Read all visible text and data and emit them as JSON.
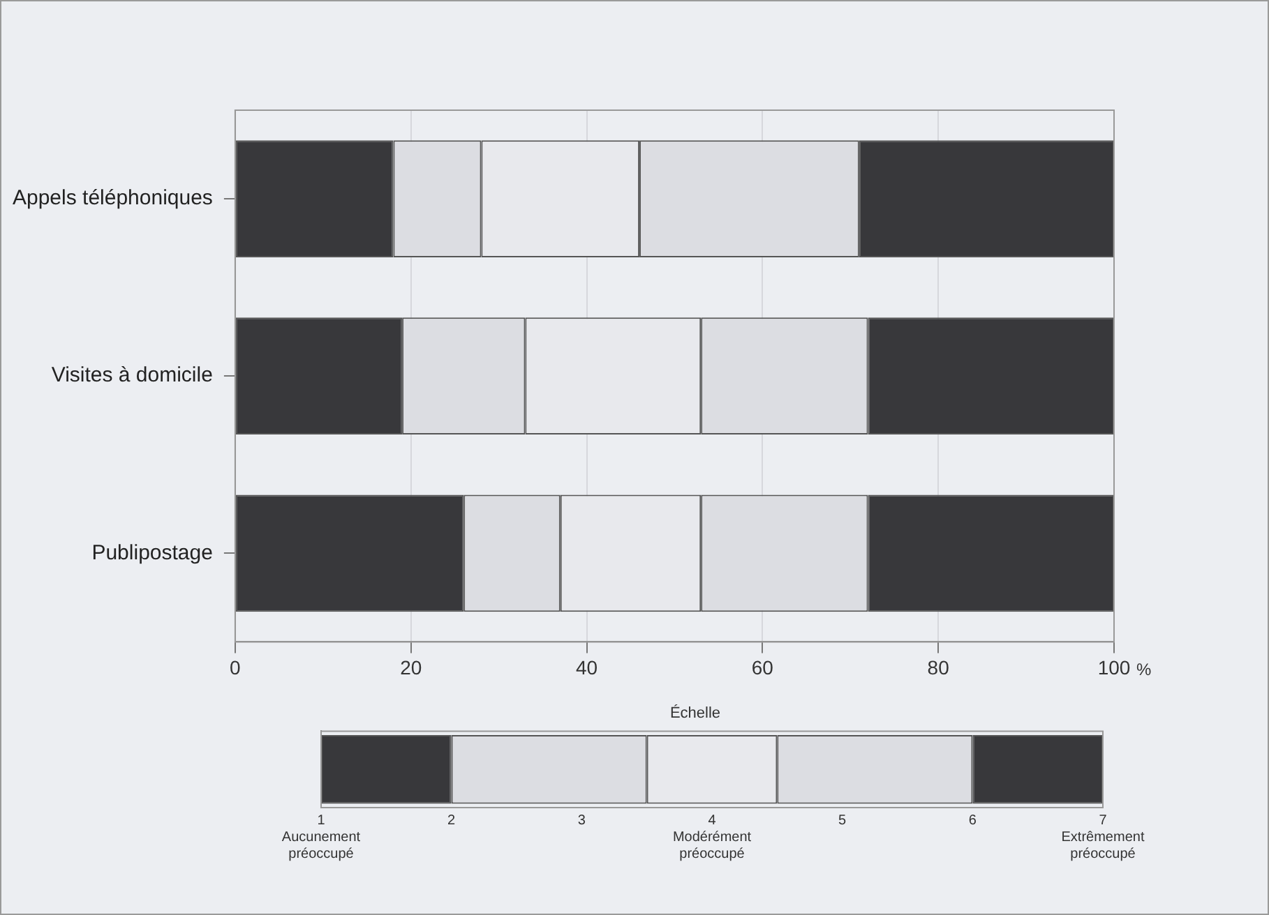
{
  "chart_data": [
    {
      "type": "bar",
      "orientation": "horizontal",
      "stacked": true,
      "xlabel": "%",
      "categories": [
        "Appels téléphoniques",
        "Visites à domicile",
        "Publipostage"
      ],
      "series": [
        {
          "color": "#38383b",
          "values": [
            18,
            19,
            26
          ]
        },
        {
          "color": "#dcdde2",
          "values": [
            10,
            14,
            11
          ]
        },
        {
          "color": "#e8e9ed",
          "values": [
            18,
            20,
            16
          ]
        },
        {
          "color": "#dcdde2",
          "values": [
            25,
            19,
            19
          ]
        },
        {
          "color": "#38383b",
          "values": [
            29,
            28,
            28
          ]
        }
      ],
      "xlim": [
        0,
        100
      ],
      "xticks": [
        0,
        20,
        40,
        60,
        80,
        100
      ],
      "grid": "x",
      "legend": false
    },
    {
      "type": "bar",
      "orientation": "horizontal",
      "title": "Échelle",
      "categories": [
        null
      ],
      "series": [
        {
          "color": "#38383b",
          "base": [
            1
          ],
          "values": [
            1
          ]
        },
        {
          "color": "#dcdde2",
          "base": [
            2
          ],
          "values": [
            1.5
          ]
        },
        {
          "color": "#e8e9ed",
          "base": [
            3.5
          ],
          "values": [
            1
          ]
        },
        {
          "color": "#dcdde2",
          "base": [
            4.5
          ],
          "values": [
            1.5
          ]
        },
        {
          "color": "#38383b",
          "base": [
            6
          ],
          "values": [
            1
          ]
        }
      ],
      "xlim": [
        1,
        7
      ],
      "xticks": [
        {
          "value": 1,
          "label": "1\nAucunement\npréoccupé"
        },
        2,
        3,
        {
          "value": 4,
          "label": "4\nModérément\npréoccupé"
        },
        5,
        6,
        {
          "value": 7,
          "label": "7\nExtrêmement\npréoccupé"
        }
      ],
      "legend": false
    }
  ]
}
